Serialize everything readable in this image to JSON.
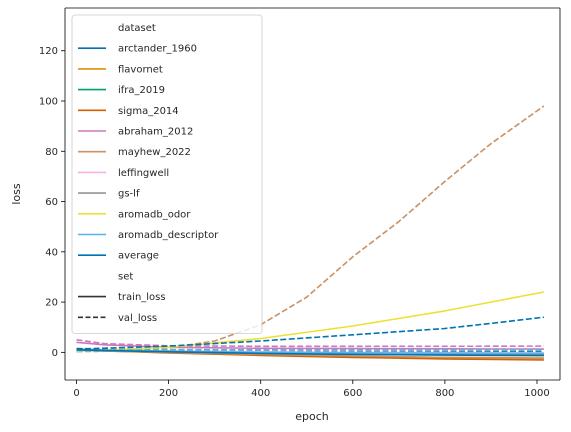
{
  "chart_data": {
    "type": "line",
    "title": "",
    "xlabel": "epoch",
    "ylabel": "loss",
    "xlim": [
      -25,
      1050
    ],
    "ylim": [
      -11,
      137
    ],
    "xticks": [
      0,
      200,
      400,
      600,
      800,
      1000
    ],
    "yticks": [
      0,
      20,
      40,
      60,
      80,
      100,
      120
    ],
    "grid": false,
    "legend": {
      "placement": "upper-left",
      "hue_title": "dataset",
      "style_title": "set",
      "style_entries": [
        {
          "name": "train_loss",
          "dash": "solid"
        },
        {
          "name": "val_loss",
          "dash": "dashed"
        }
      ]
    },
    "series": [
      {
        "name": "arctander_1960",
        "color": "#0173b2",
        "train": [
          [
            0,
            1.2
          ],
          [
            200,
            0.5
          ],
          [
            400,
            0.0
          ],
          [
            600,
            -0.4
          ],
          [
            800,
            -0.6
          ],
          [
            1015,
            -0.8
          ]
        ],
        "val": [
          [
            0,
            1.5
          ],
          [
            200,
            1.0
          ],
          [
            400,
            0.6
          ],
          [
            600,
            0.4
          ],
          [
            800,
            0.3
          ],
          [
            1015,
            0.3
          ]
        ]
      },
      {
        "name": "flavornet",
        "color": "#de8f05",
        "train": [
          [
            0,
            1.0
          ],
          [
            200,
            0.0
          ],
          [
            400,
            -1.0
          ],
          [
            600,
            -1.6
          ],
          [
            800,
            -2.0
          ],
          [
            1015,
            -2.3
          ]
        ],
        "val": [
          [
            0,
            1.2
          ],
          [
            200,
            0.0
          ],
          [
            400,
            -1.0
          ],
          [
            600,
            -1.8
          ],
          [
            800,
            -2.4
          ],
          [
            1015,
            -2.8
          ]
        ]
      },
      {
        "name": "ifra_2019",
        "color": "#029e73",
        "train": [
          [
            0,
            0.8
          ],
          [
            200,
            0.2
          ],
          [
            400,
            -0.2
          ],
          [
            600,
            -0.5
          ],
          [
            800,
            -0.7
          ],
          [
            1015,
            -0.9
          ]
        ],
        "val": [
          [
            0,
            1.0
          ],
          [
            200,
            0.6
          ],
          [
            400,
            0.3
          ],
          [
            600,
            0.1
          ],
          [
            800,
            0.0
          ],
          [
            1015,
            -0.1
          ]
        ]
      },
      {
        "name": "sigma_2014",
        "color": "#d55e00",
        "train": [
          [
            0,
            0.9
          ],
          [
            200,
            -0.2
          ],
          [
            400,
            -1.2
          ],
          [
            600,
            -2.0
          ],
          [
            800,
            -2.6
          ],
          [
            1015,
            -3.0
          ]
        ],
        "val": [
          [
            0,
            1.1
          ],
          [
            200,
            0.0
          ],
          [
            400,
            -1.0
          ],
          [
            600,
            -1.8
          ],
          [
            800,
            -2.4
          ],
          [
            1015,
            -2.8
          ]
        ]
      },
      {
        "name": "abraham_2012",
        "color": "#cc78bc",
        "train": [
          [
            0,
            4.0
          ],
          [
            60,
            3.0
          ],
          [
            200,
            2.0
          ],
          [
            400,
            1.6
          ],
          [
            600,
            1.5
          ],
          [
            800,
            1.4
          ],
          [
            1015,
            1.3
          ]
        ],
        "val": [
          [
            0,
            5.0
          ],
          [
            60,
            3.5
          ],
          [
            200,
            2.6
          ],
          [
            400,
            2.4
          ],
          [
            600,
            2.4
          ],
          [
            800,
            2.4
          ],
          [
            1015,
            2.5
          ]
        ]
      },
      {
        "name": "mayhew_2022",
        "color": "#ca9161",
        "train": [
          [
            0,
            0.8
          ],
          [
            200,
            0.0
          ],
          [
            400,
            -0.8
          ],
          [
            600,
            -1.5
          ],
          [
            800,
            -2.0
          ],
          [
            1015,
            -2.5
          ]
        ],
        "val": [
          [
            0,
            0.3
          ],
          [
            100,
            0.5
          ],
          [
            200,
            1.8
          ],
          [
            300,
            4.5
          ],
          [
            400,
            11
          ],
          [
            500,
            22
          ],
          [
            600,
            38
          ],
          [
            700,
            52
          ],
          [
            800,
            68
          ],
          [
            900,
            83
          ],
          [
            1015,
            98
          ]
        ]
      },
      {
        "name": "leffingwell",
        "color": "#fbafe4",
        "train": [
          [
            0,
            1.0
          ],
          [
            200,
            0.5
          ],
          [
            400,
            0.2
          ],
          [
            600,
            0.0
          ],
          [
            800,
            -0.1
          ],
          [
            1015,
            -0.2
          ]
        ],
        "val": [
          [
            0,
            1.2
          ],
          [
            200,
            1.0
          ],
          [
            400,
            0.9
          ],
          [
            600,
            0.8
          ],
          [
            800,
            0.8
          ],
          [
            1015,
            0.8
          ]
        ]
      },
      {
        "name": "gs-lf",
        "color": "#949494",
        "train": [
          [
            0,
            1.0
          ],
          [
            200,
            0.4
          ],
          [
            400,
            0.0
          ],
          [
            600,
            -0.3
          ],
          [
            800,
            -0.5
          ],
          [
            1015,
            -0.6
          ]
        ],
        "val": [
          [
            0,
            1.2
          ],
          [
            200,
            1.1
          ],
          [
            400,
            1.0
          ],
          [
            600,
            1.0
          ],
          [
            800,
            1.0
          ],
          [
            1015,
            1.0
          ]
        ]
      },
      {
        "name": "aromadb_odor",
        "color": "#ece133",
        "train": [
          [
            0,
            0.5
          ],
          [
            200,
            2.0
          ],
          [
            400,
            5.5
          ],
          [
            600,
            10.5
          ],
          [
            800,
            16.5
          ],
          [
            900,
            20
          ],
          [
            1015,
            24
          ]
        ],
        "val": []
      },
      {
        "name": "aromadb_descriptor",
        "color": "#56b4e9",
        "train": [
          [
            0,
            0.8
          ],
          [
            200,
            0.3
          ],
          [
            400,
            0.0
          ],
          [
            600,
            -0.2
          ],
          [
            800,
            -0.3
          ],
          [
            1015,
            -0.4
          ]
        ],
        "val": [
          [
            0,
            1.0
          ],
          [
            200,
            0.9
          ],
          [
            400,
            0.9
          ],
          [
            600,
            0.9
          ],
          [
            800,
            0.9
          ],
          [
            1015,
            0.9
          ]
        ]
      },
      {
        "name": "average",
        "color": "#0173b2",
        "train": [
          [
            0,
            1.0
          ],
          [
            200,
            0.2
          ],
          [
            400,
            -0.4
          ],
          [
            600,
            -0.8
          ],
          [
            800,
            -1.1
          ],
          [
            1015,
            -1.3
          ]
        ],
        "val": [
          [
            0,
            1.3
          ],
          [
            200,
            2.5
          ],
          [
            400,
            4.5
          ],
          [
            600,
            7.0
          ],
          [
            800,
            9.5
          ],
          [
            900,
            11.5
          ],
          [
            1015,
            14
          ]
        ]
      }
    ]
  }
}
